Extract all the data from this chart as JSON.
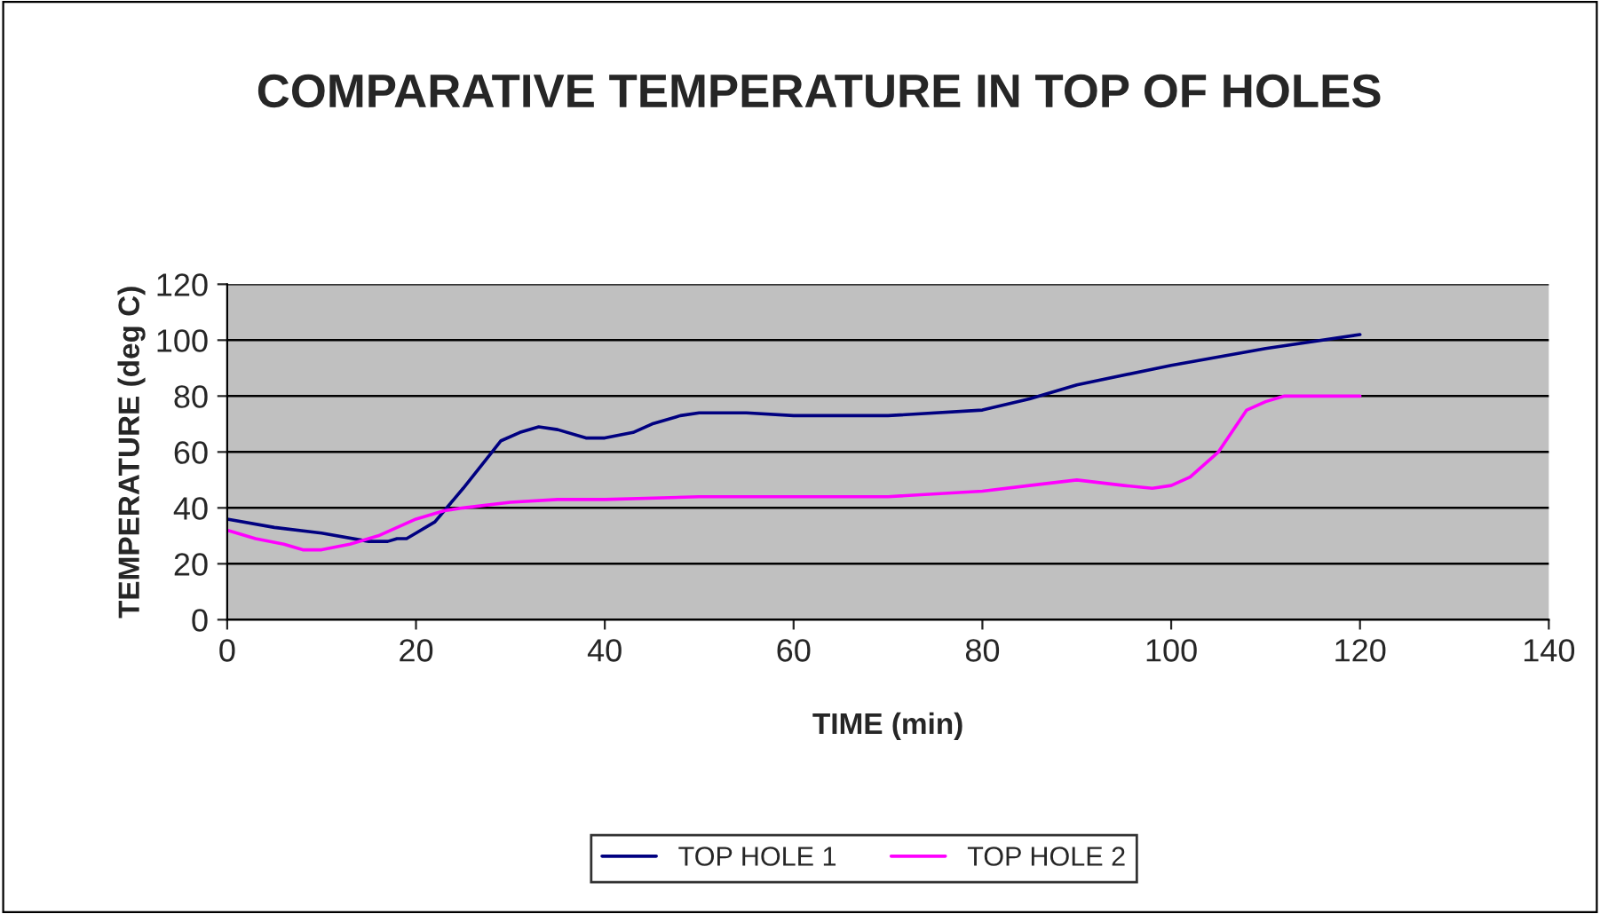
{
  "chart_data": {
    "type": "line",
    "title": "COMPARATIVE TEMPERATURE IN TOP OF HOLES",
    "xlabel": "TIME (min)",
    "ylabel": "TEMPERATURE (deg C)",
    "xlim": [
      0,
      140
    ],
    "xticks": [
      0,
      20,
      40,
      60,
      80,
      100,
      120,
      140
    ],
    "ylim": [
      0,
      120
    ],
    "yticks": [
      0,
      20,
      40,
      60,
      80,
      100,
      120
    ],
    "grid": "y",
    "legend": "bottom",
    "series": [
      {
        "name": "TOP HOLE 1",
        "color": "#000080",
        "x": [
          0,
          5,
          10,
          15,
          17,
          18,
          19,
          20,
          22,
          25,
          29,
          31,
          33,
          35,
          38,
          40,
          43,
          45,
          48,
          50,
          55,
          60,
          70,
          80,
          85,
          90,
          100,
          110,
          120
        ],
        "values": [
          36,
          33,
          31,
          28,
          28,
          29,
          29,
          31,
          35,
          47,
          64,
          67,
          69,
          68,
          65,
          65,
          67,
          70,
          73,
          74,
          74,
          73,
          73,
          75,
          79,
          84,
          91,
          97,
          102
        ]
      },
      {
        "name": "TOP HOLE 2",
        "color": "#ff00ff",
        "x": [
          0,
          3,
          6,
          8,
          10,
          13,
          16,
          20,
          23,
          25,
          30,
          35,
          40,
          50,
          60,
          70,
          80,
          85,
          90,
          95,
          98,
          100,
          102,
          105,
          108,
          110,
          112,
          120
        ],
        "values": [
          32,
          29,
          27,
          25,
          25,
          27,
          30,
          36,
          39,
          40,
          42,
          43,
          43,
          44,
          44,
          44,
          46,
          48,
          50,
          48,
          47,
          48,
          51,
          60,
          75,
          78,
          80,
          80
        ]
      }
    ]
  }
}
